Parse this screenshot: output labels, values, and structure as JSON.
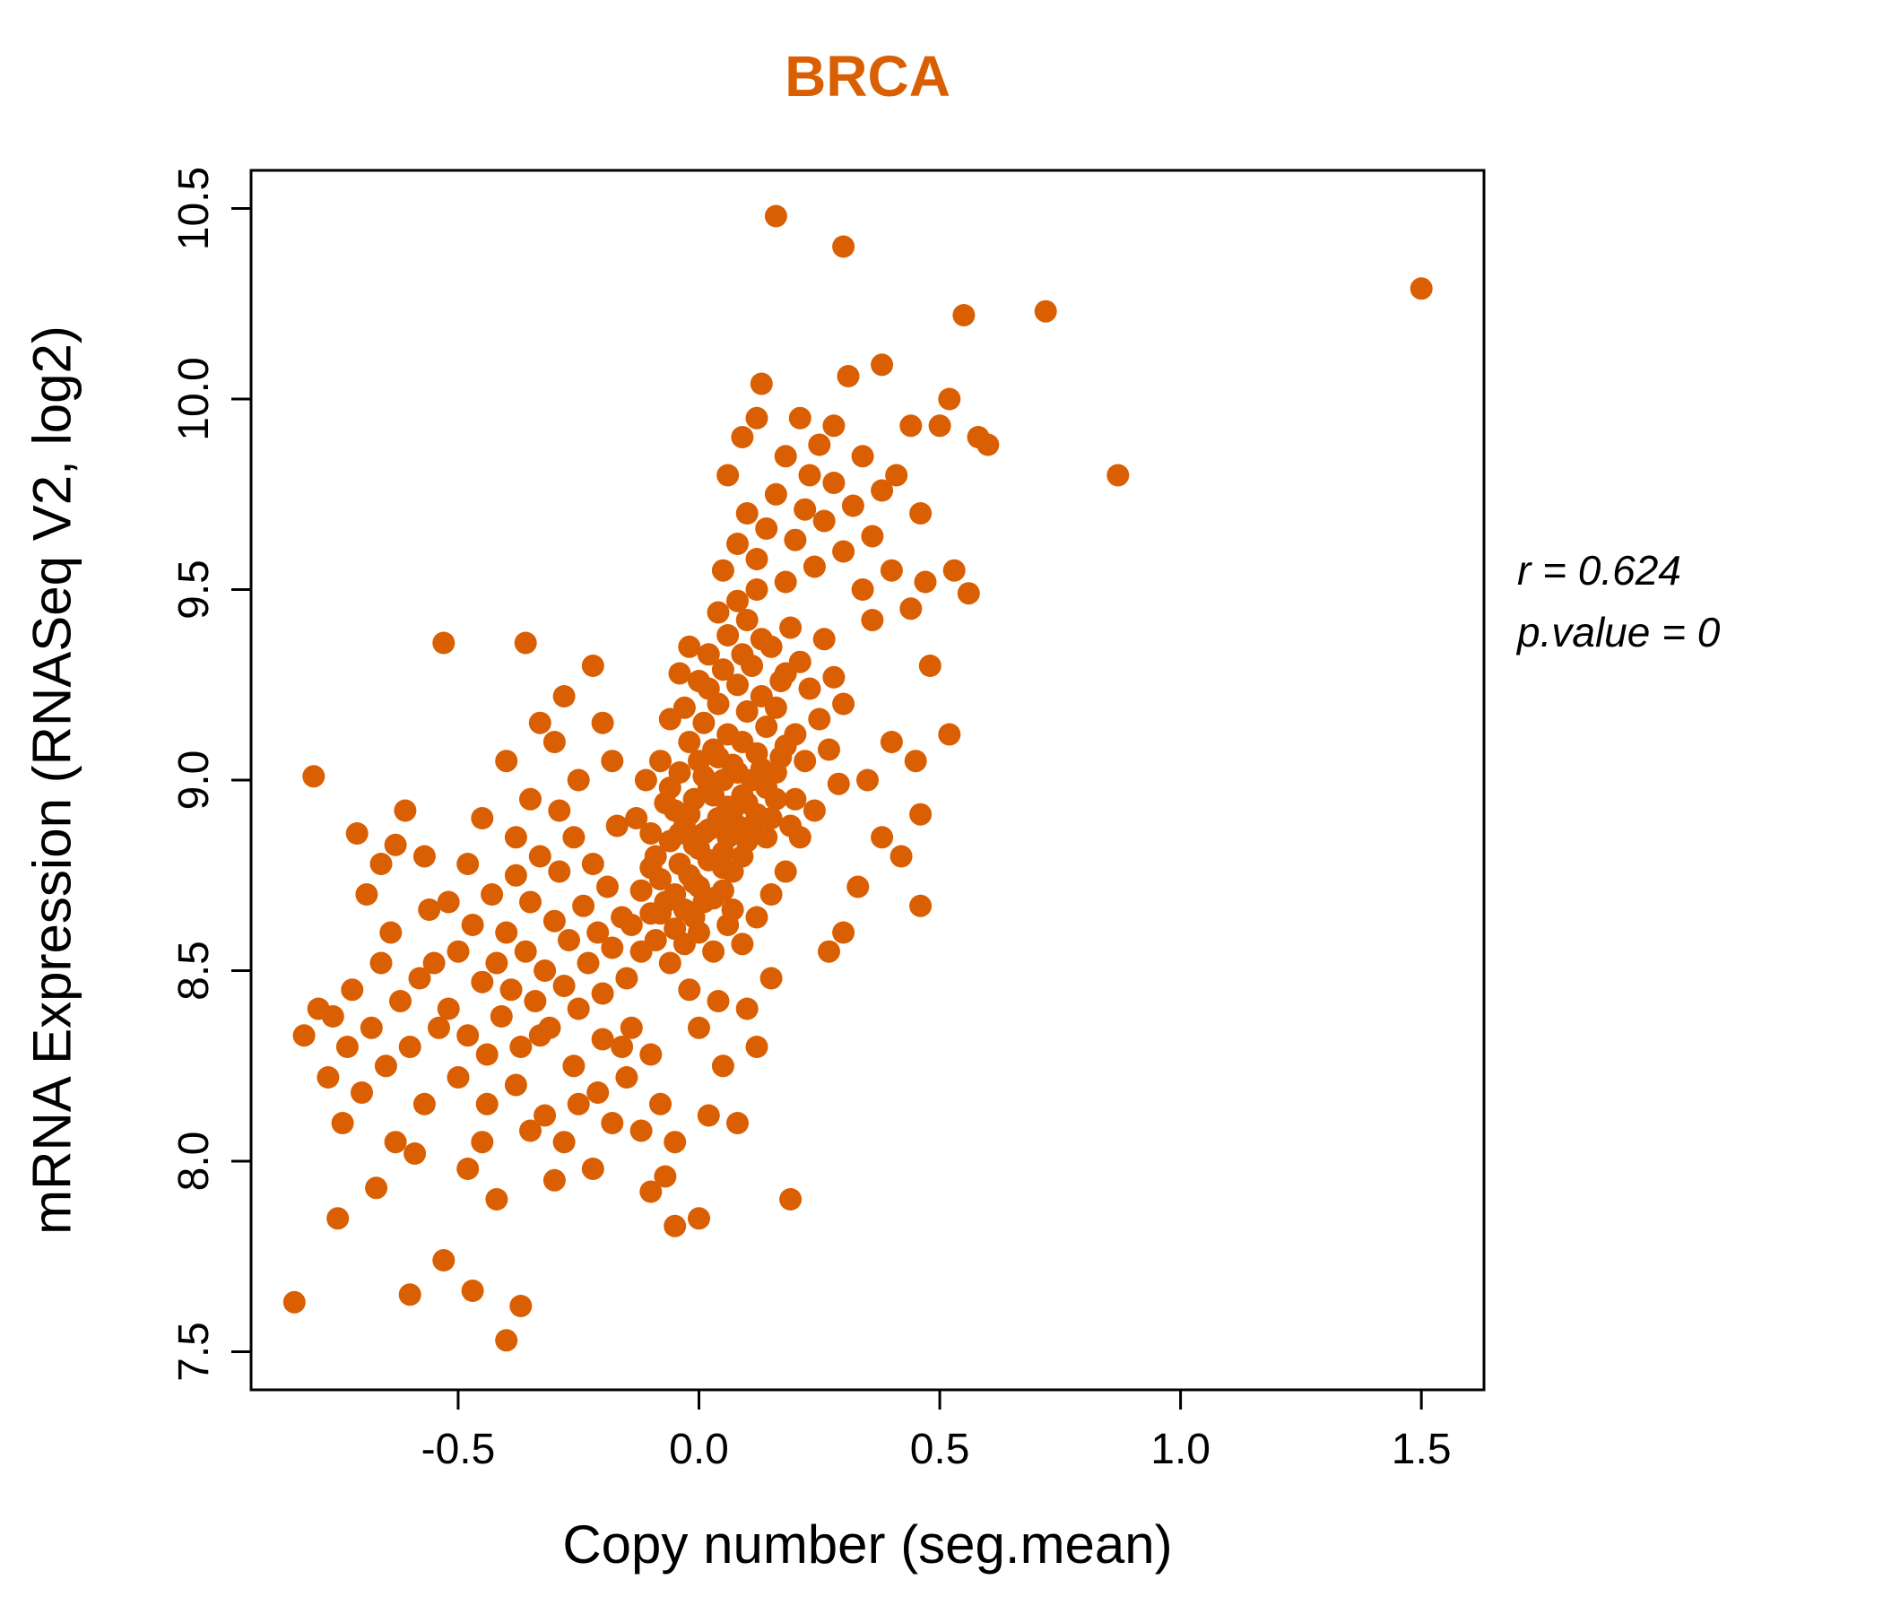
{
  "chart_data": {
    "type": "scatter",
    "title": "BRCA",
    "xlabel": "Copy number (seg.mean)",
    "ylabel": "mRNA Expression (RNASeq V2, log2)",
    "annotation": {
      "line1": "r = 0.624",
      "line2": "p.value = 0"
    },
    "correlation_r": 0.624,
    "p_value": 0,
    "xlim": [
      -0.93,
      1.63
    ],
    "ylim": [
      7.4,
      10.6
    ],
    "x_ticks": [
      {
        "v": -0.5,
        "label": "-0.5"
      },
      {
        "v": 0.0,
        "label": "0.0"
      },
      {
        "v": 0.5,
        "label": "0.5"
      },
      {
        "v": 1.0,
        "label": "1.0"
      },
      {
        "v": 1.5,
        "label": "1.5"
      }
    ],
    "y_ticks": [
      {
        "v": 7.5,
        "label": "7.5"
      },
      {
        "v": 8.0,
        "label": "8.0"
      },
      {
        "v": 8.5,
        "label": "8.5"
      },
      {
        "v": 9.0,
        "label": "9.0"
      },
      {
        "v": 9.5,
        "label": "9.5"
      },
      {
        "v": 10.0,
        "label": "10.0"
      },
      {
        "v": 10.5,
        "label": "10.5"
      }
    ],
    "point_color": "#D95F02",
    "title_color": "#D95F02",
    "grid": false,
    "points": [
      [
        -0.14,
        8.62
      ],
      [
        -0.12,
        8.71
      ],
      [
        -0.1,
        8.65
      ],
      [
        -0.09,
        8.8
      ],
      [
        -0.08,
        8.74
      ],
      [
        -0.07,
        8.68
      ],
      [
        -0.06,
        8.84
      ],
      [
        -0.05,
        8.7
      ],
      [
        -0.05,
        8.92
      ],
      [
        -0.04,
        8.78
      ],
      [
        -0.04,
        9.02
      ],
      [
        -0.03,
        8.66
      ],
      [
        -0.03,
        8.88
      ],
      [
        -0.02,
        8.75
      ],
      [
        -0.02,
        9.1
      ],
      [
        -0.01,
        8.83
      ],
      [
        -0.01,
        8.95
      ],
      [
        0.0,
        8.72
      ],
      [
        0.0,
        9.05
      ],
      [
        0.01,
        8.86
      ],
      [
        0.01,
        9.15
      ],
      [
        0.02,
        8.79
      ],
      [
        0.02,
        8.98
      ],
      [
        0.03,
        8.69
      ],
      [
        0.03,
        9.08
      ],
      [
        0.04,
        8.9
      ],
      [
        0.04,
        9.2
      ],
      [
        0.05,
        8.81
      ],
      [
        0.05,
        9.0
      ],
      [
        0.06,
        8.93
      ],
      [
        0.06,
        9.12
      ],
      [
        0.07,
        8.76
      ],
      [
        0.07,
        9.04
      ],
      [
        0.08,
        8.88
      ],
      [
        0.08,
        9.25
      ],
      [
        0.09,
        8.96
      ],
      [
        0.09,
        9.1
      ],
      [
        0.1,
        8.84
      ],
      [
        0.1,
        9.18
      ],
      [
        0.11,
        9.0
      ],
      [
        0.11,
        9.3
      ],
      [
        0.12,
        8.91
      ],
      [
        0.12,
        9.07
      ],
      [
        0.13,
        9.22
      ],
      [
        0.14,
        8.98
      ],
      [
        0.14,
        9.14
      ],
      [
        0.15,
        9.35
      ],
      [
        0.16,
        9.02
      ],
      [
        0.17,
        9.26
      ],
      [
        0.18,
        9.09
      ],
      [
        0.19,
        9.4
      ],
      [
        -0.13,
        8.9
      ],
      [
        -0.11,
        9.0
      ],
      [
        -0.1,
        8.86
      ],
      [
        -0.08,
        9.05
      ],
      [
        -0.06,
        9.16
      ],
      [
        -0.04,
        9.28
      ],
      [
        -0.02,
        9.35
      ],
      [
        0.0,
        9.26
      ],
      [
        0.02,
        9.33
      ],
      [
        0.04,
        9.44
      ],
      [
        0.06,
        9.38
      ],
      [
        0.08,
        9.47
      ],
      [
        0.1,
        9.42
      ],
      [
        0.12,
        9.5
      ],
      [
        -0.12,
        8.55
      ],
      [
        -0.09,
        8.58
      ],
      [
        -0.06,
        8.52
      ],
      [
        -0.03,
        8.57
      ],
      [
        0.0,
        8.6
      ],
      [
        0.03,
        8.55
      ],
      [
        0.06,
        8.62
      ],
      [
        0.09,
        8.57
      ],
      [
        0.12,
        8.64
      ],
      [
        0.15,
        8.7
      ],
      [
        0.18,
        8.76
      ],
      [
        -0.01,
        8.64
      ],
      [
        0.01,
        8.68
      ],
      [
        0.05,
        8.71
      ],
      [
        0.07,
        8.66
      ],
      [
        -0.05,
        8.61
      ],
      [
        -0.07,
        8.94
      ],
      [
        -0.03,
        9.19
      ],
      [
        0.02,
        9.24
      ],
      [
        0.05,
        9.29
      ],
      [
        0.09,
        9.33
      ],
      [
        0.13,
        9.37
      ],
      [
        0.16,
        9.19
      ],
      [
        0.18,
        9.28
      ],
      [
        0.2,
        9.12
      ],
      [
        0.2,
        8.95
      ],
      [
        0.21,
        9.31
      ],
      [
        0.22,
        9.05
      ],
      [
        0.23,
        9.24
      ],
      [
        0.24,
        8.92
      ],
      [
        0.25,
        9.16
      ],
      [
        0.26,
        9.37
      ],
      [
        0.27,
        9.08
      ],
      [
        0.28,
        9.27
      ],
      [
        0.29,
        8.99
      ],
      [
        0.3,
        9.2
      ],
      [
        0.02,
        8.87
      ],
      [
        0.04,
        9.06
      ],
      [
        -0.06,
        8.98
      ],
      [
        -0.02,
        8.91
      ],
      [
        0.06,
        8.85
      ],
      [
        0.08,
        9.02
      ],
      [
        0.1,
        8.94
      ],
      [
        0.0,
        8.82
      ],
      [
        0.03,
        8.96
      ],
      [
        0.01,
        9.01
      ],
      [
        -0.04,
        8.86
      ],
      [
        0.07,
        8.92
      ],
      [
        0.11,
        8.88
      ],
      [
        0.13,
        9.03
      ],
      [
        0.15,
        8.9
      ],
      [
        0.05,
        8.77
      ],
      [
        -0.01,
        8.73
      ],
      [
        0.09,
        8.8
      ],
      [
        0.14,
        8.85
      ],
      [
        -0.08,
        8.65
      ],
      [
        -0.1,
        8.77
      ],
      [
        0.16,
        8.95
      ],
      [
        0.17,
        9.06
      ],
      [
        0.19,
        8.88
      ],
      [
        0.21,
        8.85
      ],
      [
        -0.52,
        8.4
      ],
      [
        -0.5,
        8.55
      ],
      [
        -0.48,
        8.33
      ],
      [
        -0.47,
        8.62
      ],
      [
        -0.45,
        8.47
      ],
      [
        -0.44,
        8.28
      ],
      [
        -0.43,
        8.7
      ],
      [
        -0.42,
        8.52
      ],
      [
        -0.41,
        8.38
      ],
      [
        -0.4,
        8.6
      ],
      [
        -0.39,
        8.45
      ],
      [
        -0.38,
        8.75
      ],
      [
        -0.37,
        8.3
      ],
      [
        -0.36,
        8.55
      ],
      [
        -0.35,
        8.68
      ],
      [
        -0.34,
        8.42
      ],
      [
        -0.33,
        8.8
      ],
      [
        -0.32,
        8.5
      ],
      [
        -0.31,
        8.35
      ],
      [
        -0.3,
        8.63
      ],
      [
        -0.29,
        8.76
      ],
      [
        -0.28,
        8.46
      ],
      [
        -0.27,
        8.58
      ],
      [
        -0.26,
        8.85
      ],
      [
        -0.25,
        8.4
      ],
      [
        -0.24,
        8.67
      ],
      [
        -0.23,
        8.52
      ],
      [
        -0.22,
        8.78
      ],
      [
        -0.21,
        8.6
      ],
      [
        -0.2,
        8.44
      ],
      [
        -0.19,
        8.72
      ],
      [
        -0.18,
        8.56
      ],
      [
        -0.17,
        8.88
      ],
      [
        -0.16,
        8.64
      ],
      [
        -0.15,
        8.48
      ],
      [
        -0.45,
        8.9
      ],
      [
        -0.4,
        9.05
      ],
      [
        -0.35,
        8.95
      ],
      [
        -0.3,
        9.1
      ],
      [
        -0.25,
        9.0
      ],
      [
        -0.2,
        9.15
      ],
      [
        -0.28,
        9.22
      ],
      [
        -0.22,
        9.3
      ],
      [
        -0.18,
        9.05
      ],
      [
        -0.33,
        9.15
      ],
      [
        -0.38,
        8.85
      ],
      [
        -0.48,
        8.78
      ],
      [
        -0.52,
        8.68
      ],
      [
        -0.55,
        8.52
      ],
      [
        -0.54,
        8.35
      ],
      [
        -0.5,
        8.22
      ],
      [
        -0.44,
        8.15
      ],
      [
        -0.38,
        8.2
      ],
      [
        -0.32,
        8.12
      ],
      [
        -0.26,
        8.25
      ],
      [
        -0.21,
        8.18
      ],
      [
        -0.16,
        8.3
      ],
      [
        -0.53,
        9.36
      ],
      [
        -0.36,
        9.36
      ],
      [
        -0.29,
        8.92
      ],
      [
        -0.84,
        7.63
      ],
      [
        -0.82,
        8.33
      ],
      [
        -0.8,
        9.01
      ],
      [
        -0.79,
        8.4
      ],
      [
        -0.77,
        8.22
      ],
      [
        -0.76,
        8.38
      ],
      [
        -0.74,
        8.1
      ],
      [
        -0.73,
        8.3
      ],
      [
        -0.72,
        8.45
      ],
      [
        -0.7,
        8.18
      ],
      [
        -0.68,
        8.35
      ],
      [
        -0.67,
        7.93
      ],
      [
        -0.66,
        8.52
      ],
      [
        -0.65,
        8.25
      ],
      [
        -0.64,
        8.6
      ],
      [
        -0.63,
        8.05
      ],
      [
        -0.62,
        8.42
      ],
      [
        -0.6,
        8.3
      ],
      [
        -0.6,
        7.65
      ],
      [
        -0.58,
        8.48
      ],
      [
        -0.57,
        8.15
      ],
      [
        -0.56,
        8.66
      ],
      [
        -0.69,
        8.7
      ],
      [
        -0.71,
        8.86
      ],
      [
        -0.66,
        8.78
      ],
      [
        -0.61,
        8.92
      ],
      [
        -0.75,
        7.85
      ],
      [
        -0.59,
        8.02
      ],
      [
        -0.63,
        8.83
      ],
      [
        -0.57,
        8.8
      ],
      [
        0.05,
        9.55
      ],
      [
        0.08,
        9.62
      ],
      [
        0.1,
        9.7
      ],
      [
        0.12,
        9.58
      ],
      [
        0.14,
        9.66
      ],
      [
        0.16,
        9.75
      ],
      [
        0.18,
        9.52
      ],
      [
        0.2,
        9.63
      ],
      [
        0.22,
        9.71
      ],
      [
        0.24,
        9.56
      ],
      [
        0.26,
        9.68
      ],
      [
        0.28,
        9.78
      ],
      [
        0.3,
        9.6
      ],
      [
        0.32,
        9.72
      ],
      [
        0.34,
        9.5
      ],
      [
        0.36,
        9.64
      ],
      [
        0.38,
        9.76
      ],
      [
        0.4,
        9.55
      ],
      [
        0.13,
        10.04
      ],
      [
        0.16,
        10.48
      ],
      [
        0.3,
        10.4
      ],
      [
        0.31,
        10.06
      ],
      [
        0.38,
        10.09
      ],
      [
        0.44,
        9.93
      ],
      [
        0.5,
        9.93
      ],
      [
        0.52,
        10.0
      ],
      [
        0.55,
        10.22
      ],
      [
        0.58,
        9.9
      ],
      [
        0.6,
        9.88
      ],
      [
        0.72,
        10.23
      ],
      [
        0.87,
        9.8
      ],
      [
        1.5,
        10.29
      ],
      [
        0.21,
        9.95
      ],
      [
        0.25,
        9.88
      ],
      [
        0.28,
        9.93
      ],
      [
        0.34,
        9.85
      ],
      [
        0.41,
        9.8
      ],
      [
        0.46,
        9.7
      ],
      [
        0.09,
        9.9
      ],
      [
        0.06,
        9.8
      ],
      [
        0.18,
        9.85
      ],
      [
        0.23,
        9.8
      ],
      [
        0.12,
        9.95
      ],
      [
        0.47,
        9.52
      ],
      [
        0.53,
        9.55
      ],
      [
        0.56,
        9.49
      ],
      [
        0.44,
        9.45
      ],
      [
        0.36,
        9.42
      ],
      [
        0.48,
        9.3
      ],
      [
        0.52,
        9.12
      ],
      [
        0.46,
        8.91
      ],
      [
        0.42,
        8.8
      ],
      [
        0.38,
        8.85
      ],
      [
        -0.48,
        7.98
      ],
      [
        -0.45,
        8.05
      ],
      [
        -0.42,
        7.9
      ],
      [
        -0.4,
        7.53
      ],
      [
        -0.37,
        7.62
      ],
      [
        -0.47,
        7.66
      ],
      [
        -0.53,
        7.74
      ],
      [
        -0.35,
        8.08
      ],
      [
        -0.3,
        7.95
      ],
      [
        -0.28,
        8.05
      ],
      [
        -0.25,
        8.15
      ],
      [
        -0.22,
        7.98
      ],
      [
        -0.18,
        8.1
      ],
      [
        -0.15,
        8.22
      ],
      [
        -0.12,
        8.08
      ],
      [
        -0.1,
        8.28
      ],
      [
        -0.08,
        8.15
      ],
      [
        -0.05,
        8.05
      ],
      [
        -0.05,
        7.83
      ],
      [
        0.0,
        7.85
      ],
      [
        0.19,
        7.9
      ],
      [
        -0.1,
        7.92
      ],
      [
        -0.07,
        7.96
      ],
      [
        0.02,
        8.12
      ],
      [
        0.05,
        8.25
      ],
      [
        0.08,
        8.1
      ],
      [
        0.12,
        8.3
      ],
      [
        -0.14,
        8.35
      ],
      [
        -0.2,
        8.32
      ],
      [
        -0.33,
        8.33
      ],
      [
        0.0,
        8.35
      ],
      [
        0.04,
        8.42
      ],
      [
        0.15,
        8.48
      ],
      [
        0.1,
        8.4
      ],
      [
        -0.02,
        8.45
      ],
      [
        0.3,
        8.6
      ],
      [
        0.33,
        8.72
      ],
      [
        0.27,
        8.55
      ],
      [
        0.35,
        9.0
      ],
      [
        0.4,
        9.1
      ],
      [
        0.45,
        9.05
      ],
      [
        0.46,
        8.67
      ]
    ]
  }
}
